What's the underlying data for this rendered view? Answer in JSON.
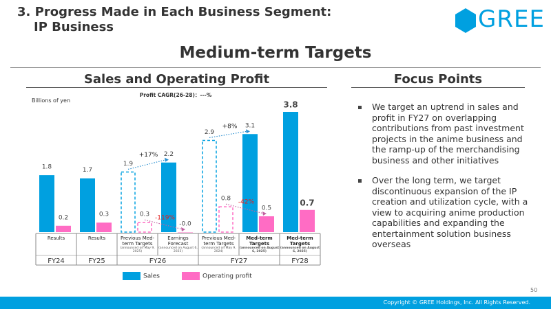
{
  "header": {
    "title_line1": "3. Progress Made in Each Business Segment:",
    "title_line2": "IP Business",
    "logo": "GREE",
    "subtitle": "Medium-term Targets"
  },
  "chart_data": {
    "type": "bar",
    "title": "Sales and Operating Profit",
    "subtitle": "Profit CAGR(26-28)：---%",
    "unit_label": "Billions of yen",
    "categories": [
      "Results",
      "Results",
      "Previous Med-term Targets",
      "Earnings Forecast",
      "Previous Med-term Targets",
      "Med-term Targets",
      "Med-term Targets"
    ],
    "category_notes": [
      null,
      null,
      "(announced on May 9, 2025)",
      "(announced on August 6, 2025)",
      "(announced on May 9, 2024)",
      "(announced on August 6, 2025)",
      "(announced on August 6, 2025)"
    ],
    "category_bold": [
      false,
      false,
      false,
      false,
      false,
      true,
      true
    ],
    "fiscal_years": [
      "FY24",
      "FY25",
      "FY26",
      null,
      "FY27",
      null,
      "FY28"
    ],
    "outlined": [
      false,
      false,
      true,
      false,
      true,
      false,
      false
    ],
    "series": [
      {
        "name": "Sales",
        "color": "#00a0e0",
        "values": [
          1.8,
          1.7,
          1.9,
          2.2,
          2.9,
          3.1,
          3.8
        ]
      },
      {
        "name": "Operating profit",
        "color": "#ff6cc4",
        "values": [
          0.2,
          0.3,
          0.3,
          -0.01,
          0.8,
          0.5,
          0.7
        ],
        "value_labels": [
          "0.2",
          "0.3",
          "0.3",
          "-0.0",
          "0.8",
          "0.5",
          "0.7"
        ]
      }
    ],
    "annotations": [
      {
        "text": "+17%",
        "series": 0,
        "from": 2,
        "to": 3,
        "color": "#222222"
      },
      {
        "text": "-119%",
        "series": 1,
        "from": 2,
        "to": 3,
        "color": "#e02020"
      },
      {
        "text": "+8%",
        "series": 0,
        "from": 4,
        "to": 5,
        "color": "#222222"
      },
      {
        "text": "-42%",
        "series": 1,
        "from": 4,
        "to": 5,
        "color": "#e02020"
      }
    ]
  },
  "focus": {
    "title": "Focus Points",
    "items": [
      "We target an uptrend in sales and profit in FY27 on overlapping contributions from past investment projects in the anime business and the ramp-up of the merchandising business and other initiatives",
      "Over the long term, we target discontinuous expansion of the IP creation and utilization cycle, with a view to acquiring anime production capabilities and expanding the entertainment solution business overseas"
    ]
  },
  "footer": {
    "page": "50",
    "copyright": "Copyright © GREE Holdings, Inc. All Rights Reserved."
  }
}
